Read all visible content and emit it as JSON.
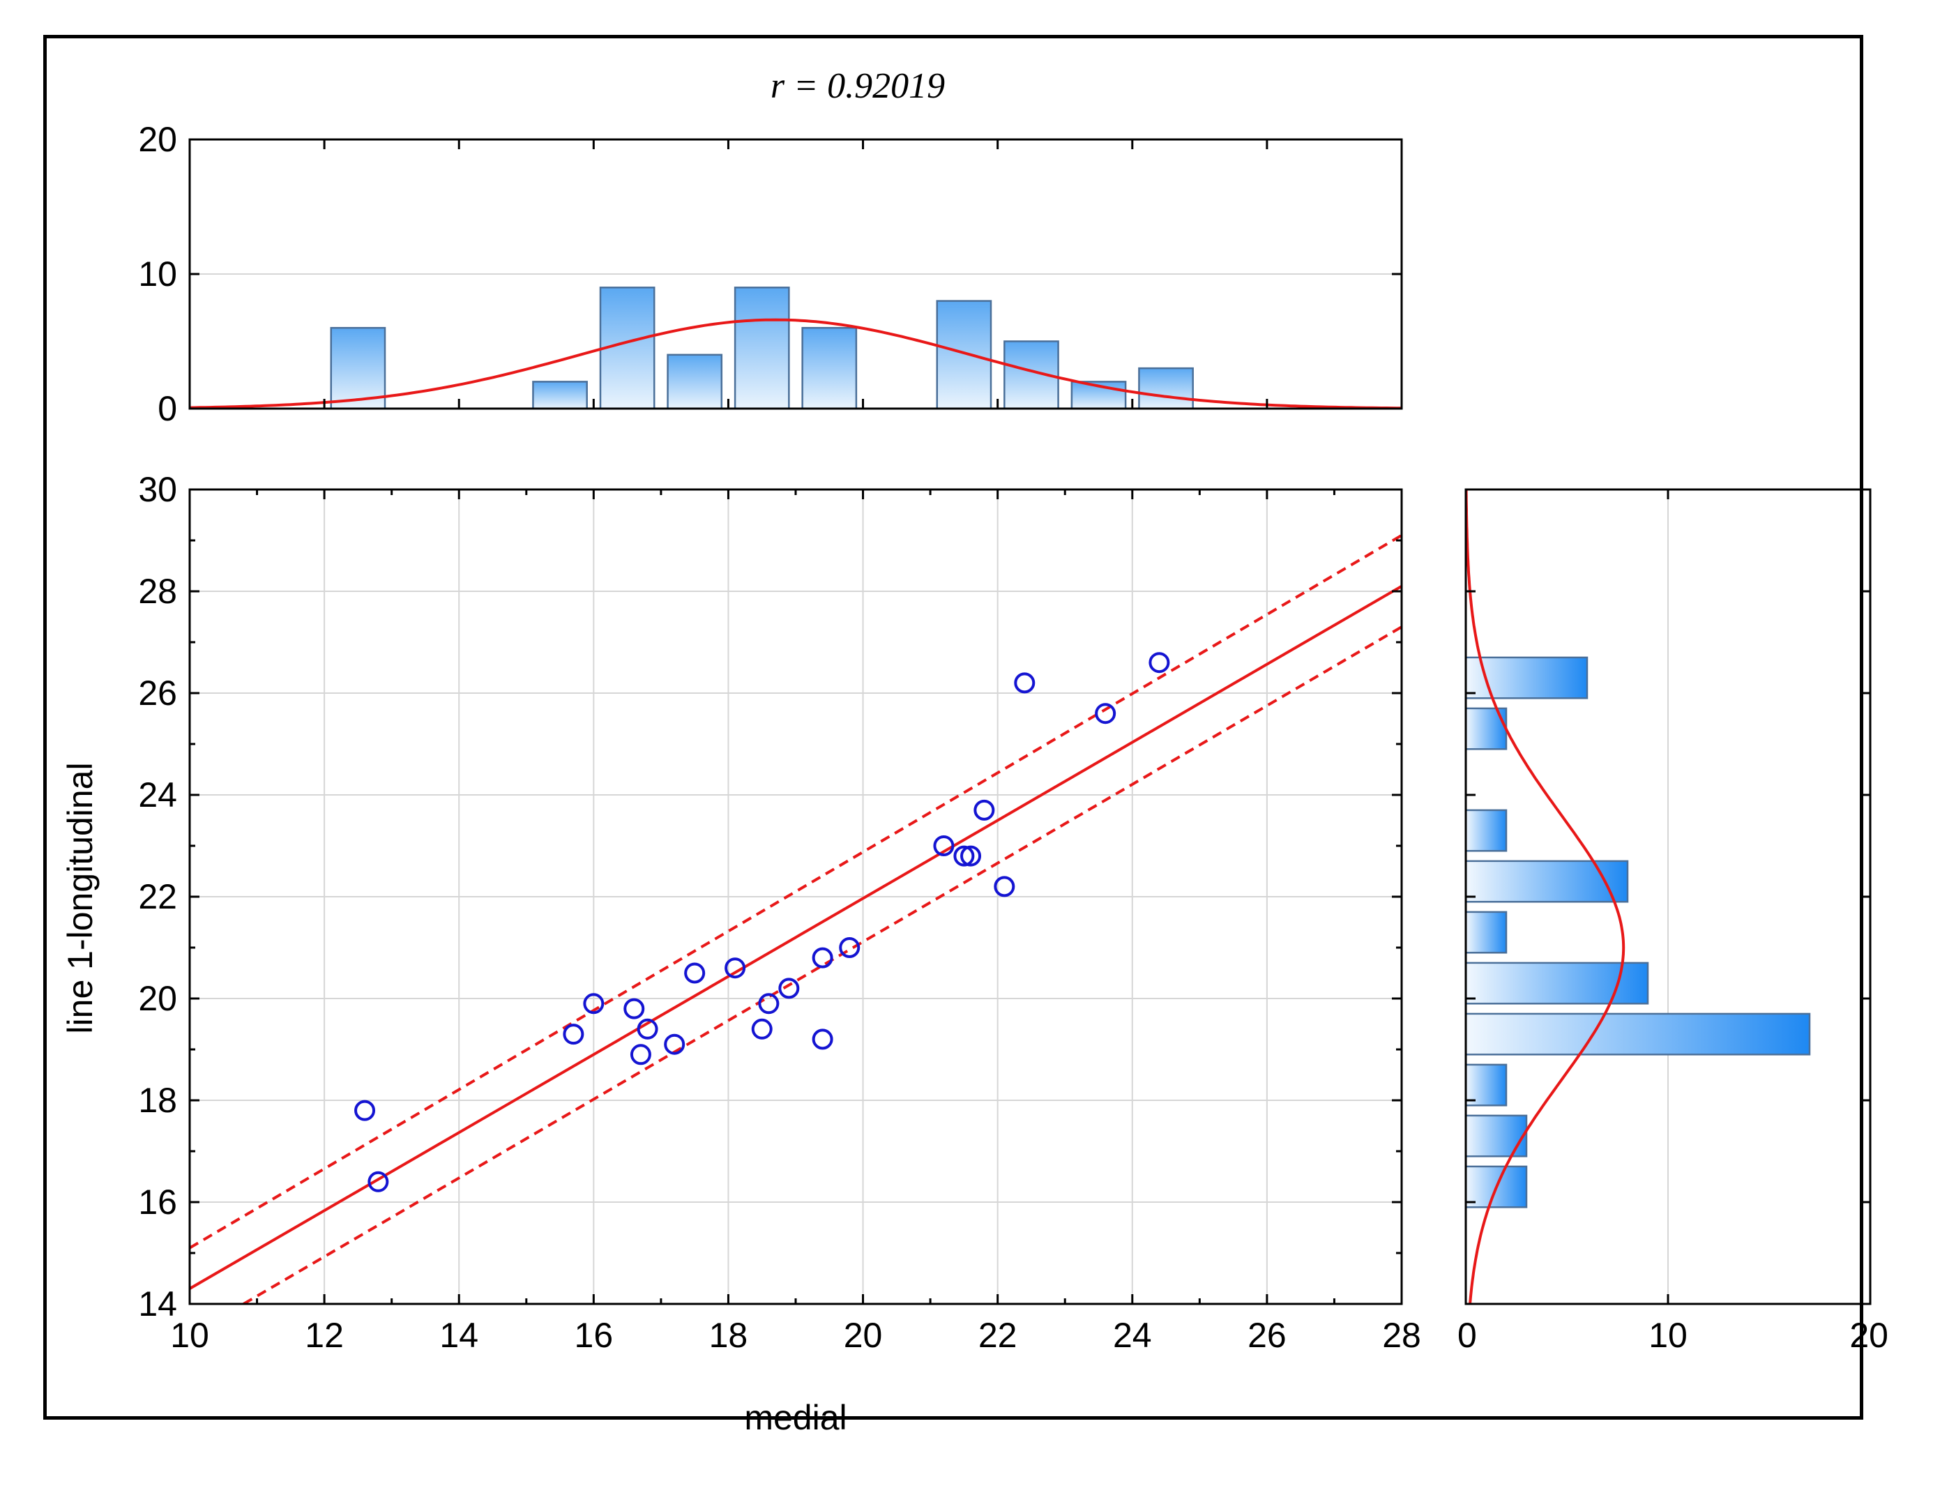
{
  "chart_data": [
    {
      "name": "scatter",
      "type": "scatter",
      "title": "r = 0.92019",
      "xlabel": "medial",
      "ylabel": "line 1-longitudinal",
      "xlim": [
        10,
        28
      ],
      "ylim": [
        14,
        30
      ],
      "xticks": [
        "10",
        "12",
        "14",
        "16",
        "18",
        "20",
        "22",
        "24",
        "26",
        "28"
      ],
      "yticks": [
        "14",
        "16",
        "18",
        "20",
        "22",
        "24",
        "26",
        "28",
        "30"
      ],
      "grid": true,
      "points": [
        [
          12.6,
          17.8
        ],
        [
          12.8,
          16.4
        ],
        [
          15.7,
          19.3
        ],
        [
          16.0,
          19.9
        ],
        [
          16.6,
          19.8
        ],
        [
          16.7,
          18.9
        ],
        [
          16.8,
          19.4
        ],
        [
          17.2,
          19.1
        ],
        [
          17.5,
          20.5
        ],
        [
          18.1,
          20.6
        ],
        [
          18.5,
          19.4
        ],
        [
          18.6,
          19.9
        ],
        [
          18.9,
          20.2
        ],
        [
          19.4,
          19.2
        ],
        [
          19.4,
          20.8
        ],
        [
          19.8,
          21.0
        ],
        [
          21.2,
          23.0
        ],
        [
          21.5,
          22.8
        ],
        [
          21.6,
          22.8
        ],
        [
          21.8,
          23.7
        ],
        [
          22.1,
          22.2
        ],
        [
          22.4,
          26.2
        ],
        [
          23.6,
          25.6
        ],
        [
          24.4,
          26.6
        ]
      ],
      "fit": {
        "x": [
          10,
          28
        ],
        "y": [
          14.3,
          28.1
        ]
      },
      "ci_upper": {
        "x": [
          10,
          28
        ],
        "y": [
          15.1,
          29.1
        ]
      },
      "ci_lower": {
        "x": [
          10.8,
          28
        ],
        "y": [
          14.0,
          27.3
        ]
      }
    },
    {
      "name": "top_histogram",
      "type": "bar",
      "variable": "medial",
      "xlim": [
        10,
        28
      ],
      "ylim": [
        0,
        20
      ],
      "yticks": [
        "0",
        "10",
        "20"
      ],
      "bins": [
        {
          "x0": 12.1,
          "x1": 12.9,
          "count": 6
        },
        {
          "x0": 15.1,
          "x1": 15.9,
          "count": 2
        },
        {
          "x0": 16.1,
          "x1": 16.9,
          "count": 9
        },
        {
          "x0": 17.1,
          "x1": 17.9,
          "count": 4
        },
        {
          "x0": 18.1,
          "x1": 18.9,
          "count": 9
        },
        {
          "x0": 19.1,
          "x1": 19.9,
          "count": 6
        },
        {
          "x0": 21.1,
          "x1": 21.9,
          "count": 8
        },
        {
          "x0": 22.1,
          "x1": 22.9,
          "count": 5
        },
        {
          "x0": 23.1,
          "x1": 23.9,
          "count": 2
        },
        {
          "x0": 24.1,
          "x1": 24.9,
          "count": 3
        }
      ],
      "normal_curve": {
        "mean": 18.7,
        "sd": 2.9,
        "peak": 6.6
      }
    },
    {
      "name": "right_histogram",
      "type": "bar",
      "orientation": "horizontal",
      "variable": "line 1-longitudinal",
      "ylim": [
        14,
        30
      ],
      "xlim": [
        0,
        20
      ],
      "xticks": [
        "0",
        "10",
        "20"
      ],
      "bins": [
        {
          "y0": 25.9,
          "y1": 26.7,
          "count": 6
        },
        {
          "y0": 24.9,
          "y1": 25.7,
          "count": 2
        },
        {
          "y0": 22.9,
          "y1": 23.7,
          "count": 2
        },
        {
          "y0": 21.9,
          "y1": 22.7,
          "count": 8
        },
        {
          "y0": 20.9,
          "y1": 21.7,
          "count": 2
        },
        {
          "y0": 19.9,
          "y1": 20.7,
          "count": 9
        },
        {
          "y0": 18.9,
          "y1": 19.7,
          "count": 17
        },
        {
          "y0": 17.9,
          "y1": 18.7,
          "count": 2
        },
        {
          "y0": 16.9,
          "y1": 17.7,
          "count": 3
        },
        {
          "y0": 15.9,
          "y1": 16.7,
          "count": 3
        }
      ],
      "normal_curve": {
        "mean": 21.0,
        "sd": 2.6,
        "peak": 7.8
      }
    }
  ]
}
